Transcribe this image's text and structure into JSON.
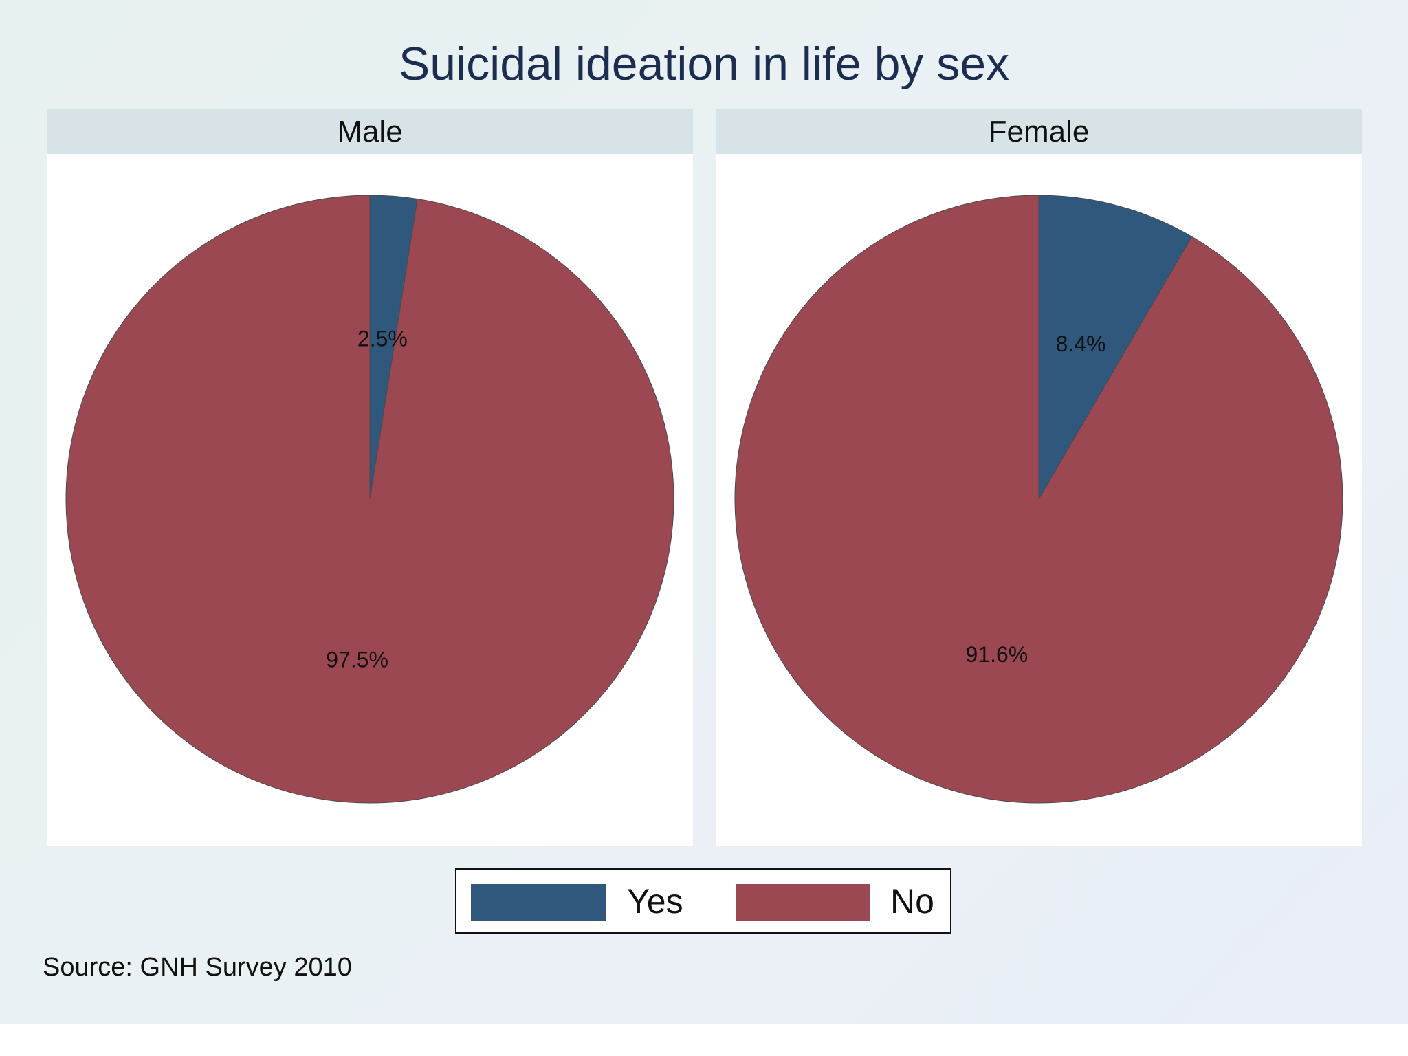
{
  "chart_data": {
    "type": "pie",
    "title": "Suicidal ideation in life by sex",
    "categories": [
      "Yes",
      "No"
    ],
    "colors": {
      "Yes": "#30587d",
      "No": "#9c4852"
    },
    "panels": [
      {
        "label": "Male",
        "values": [
          2.5,
          97.5
        ],
        "value_labels": [
          "2.5%",
          "97.5%"
        ]
      },
      {
        "label": "Female",
        "values": [
          8.4,
          91.6
        ],
        "value_labels": [
          "8.4%",
          "91.6%"
        ]
      }
    ],
    "legend": {
      "placement": "bottom-center",
      "entries": [
        "Yes",
        "No"
      ]
    },
    "note": "Source: GNH Survey 2010"
  }
}
